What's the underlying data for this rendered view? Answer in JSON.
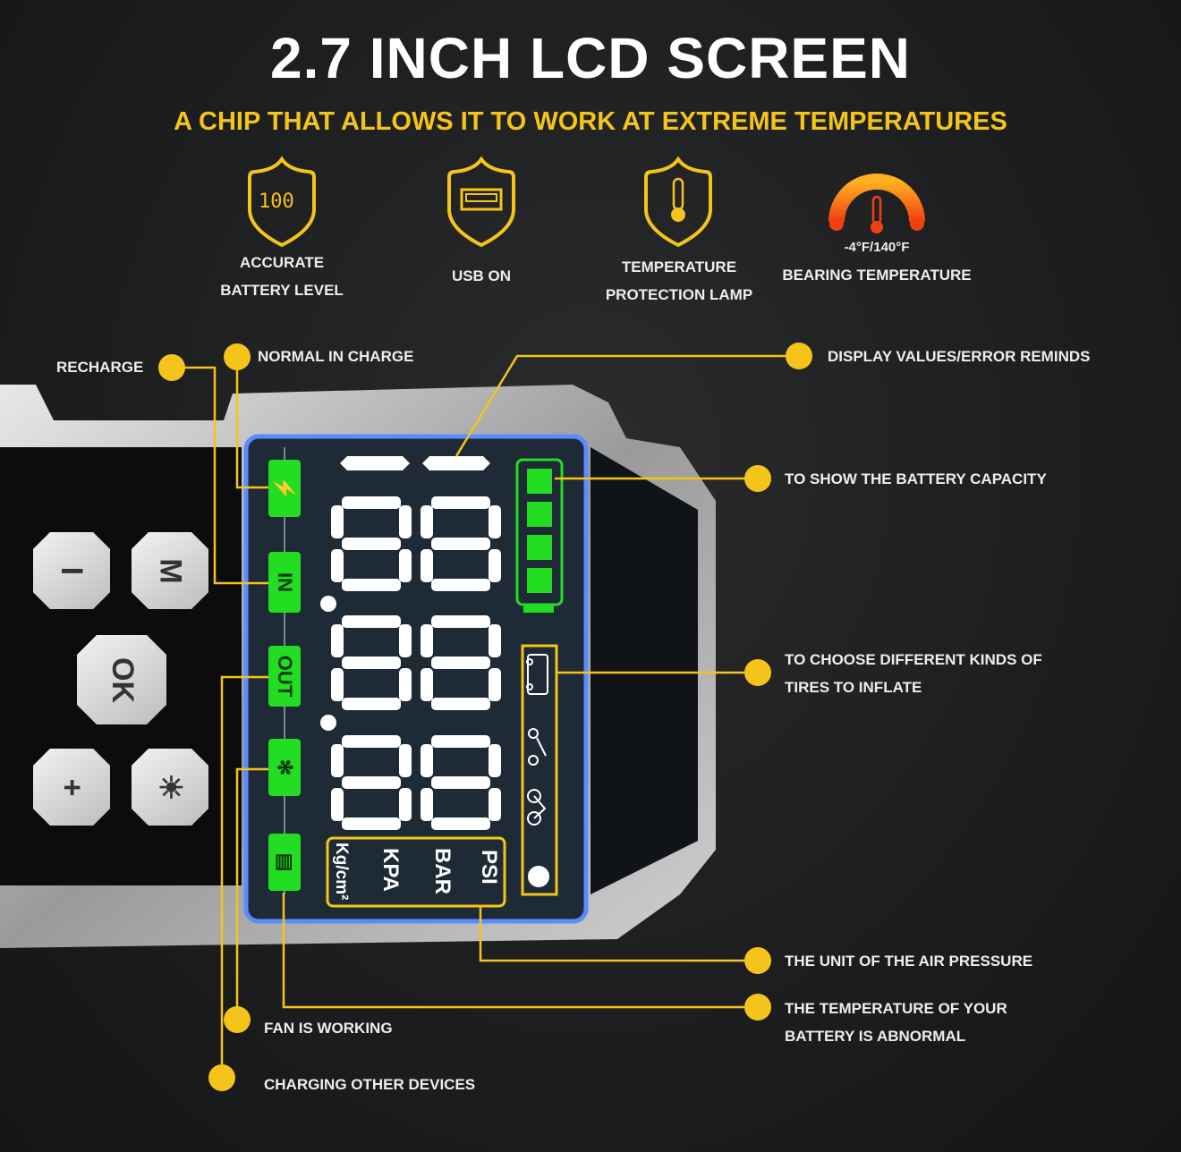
{
  "header": {
    "title": "2.7 INCH LCD SCREEN",
    "subtitle": "A CHIP THAT ALLOWS IT TO WORK AT EXTREME TEMPERATURES"
  },
  "features": [
    {
      "icon": "shield-battery-100-icon",
      "badge": "100",
      "line1": "ACCURATE",
      "line2": "BATTERY LEVEL"
    },
    {
      "icon": "shield-usb-icon",
      "line1": "USB ON"
    },
    {
      "icon": "shield-thermometer-icon",
      "line1": "TEMPERATURE",
      "line2": "PROTECTION LAMP"
    },
    {
      "icon": "temperature-gauge-icon",
      "range": "-4°F/140°F",
      "line1": "BEARING TEMPERATURE"
    }
  ],
  "device": {
    "buttons": [
      "I",
      "M",
      "OK",
      "+",
      "☀"
    ]
  },
  "lcd": {
    "indicators": [
      "⚡",
      "IN",
      "OUT",
      "✻",
      "▤"
    ],
    "units": [
      "PSI",
      "BAR",
      "KPA",
      "Kg/cm²"
    ],
    "battery_bars": 4,
    "tire_modes": [
      "car-icon",
      "motorcycle-icon",
      "bicycle-icon",
      "ball-icon"
    ]
  },
  "callouts": {
    "recharge": "RECHARGE",
    "normal_in_charge": "NORMAL IN CHARGE",
    "display_values": "DISPLAY VALUES/ERROR REMINDS",
    "battery_capacity": "TO SHOW THE BATTERY CAPACITY",
    "tires_1": "TO CHOOSE DIFFERENT KINDS OF",
    "tires_2": "TIRES TO INFLATE",
    "unit": "THE UNIT OF THE AIR PRESSURE",
    "battery_temp_1": "THE TEMPERATURE OF YOUR",
    "battery_temp_2": "BATTERY IS ABNORMAL",
    "fan": "FAN IS WORKING",
    "charging_other": "CHARGING OTHER DEVICES"
  },
  "colors": {
    "accent": "#f5c41a",
    "lcd_green": "#22dd22",
    "background": "#1c1d1f"
  }
}
